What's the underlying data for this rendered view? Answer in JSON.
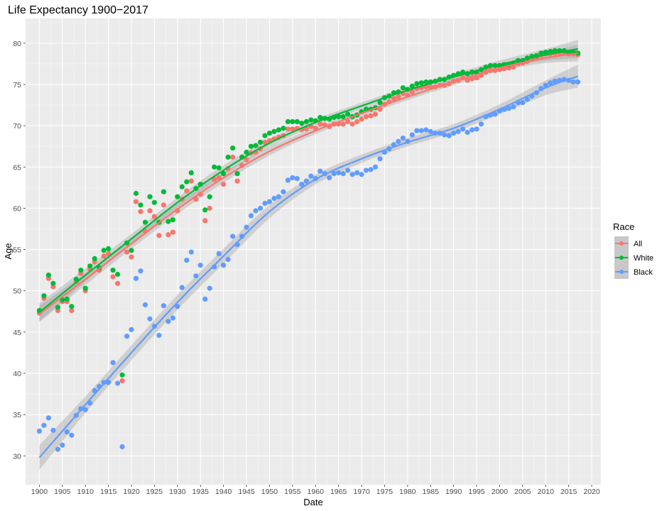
{
  "chart_data": {
    "type": "scatter",
    "title": "Life Expectancy 1900−2017",
    "xlabel": "Date",
    "ylabel": "Age",
    "xlim": [
      1897,
      2022
    ],
    "ylim": [
      26.5,
      83
    ],
    "x_ticks": [
      1900,
      1905,
      1910,
      1915,
      1920,
      1925,
      1930,
      1935,
      1940,
      1945,
      1950,
      1955,
      1960,
      1965,
      1970,
      1975,
      1980,
      1985,
      1990,
      1995,
      2000,
      2005,
      2010,
      2015,
      2020
    ],
    "y_ticks": [
      30,
      35,
      40,
      45,
      50,
      55,
      60,
      65,
      70,
      75,
      80
    ],
    "grid": true,
    "legend": {
      "title": "Race",
      "position": "right"
    },
    "smooth": "loess with confidence band",
    "series": [
      {
        "name": "All",
        "color": "#F8766D",
        "x": [
          1900,
          1901,
          1902,
          1903,
          1904,
          1905,
          1906,
          1907,
          1908,
          1909,
          1910,
          1911,
          1912,
          1913,
          1914,
          1915,
          1916,
          1917,
          1918,
          1919,
          1920,
          1921,
          1922,
          1923,
          1924,
          1925,
          1926,
          1927,
          1928,
          1929,
          1930,
          1931,
          1932,
          1933,
          1934,
          1935,
          1936,
          1937,
          1938,
          1939,
          1940,
          1941,
          1942,
          1943,
          1944,
          1945,
          1946,
          1947,
          1948,
          1949,
          1950,
          1951,
          1952,
          1953,
          1954,
          1955,
          1956,
          1957,
          1958,
          1959,
          1960,
          1961,
          1962,
          1963,
          1964,
          1965,
          1966,
          1967,
          1968,
          1969,
          1970,
          1971,
          1972,
          1973,
          1974,
          1975,
          1976,
          1977,
          1978,
          1979,
          1980,
          1981,
          1982,
          1983,
          1984,
          1985,
          1986,
          1987,
          1988,
          1989,
          1990,
          1991,
          1992,
          1993,
          1994,
          1995,
          1996,
          1997,
          1998,
          1999,
          2000,
          2001,
          2002,
          2003,
          2004,
          2005,
          2006,
          2007,
          2008,
          2009,
          2010,
          2011,
          2012,
          2013,
          2014,
          2015,
          2016,
          2017
        ],
        "y": [
          47.3,
          49.1,
          51.5,
          50.5,
          47.6,
          48.7,
          48.7,
          47.6,
          51.1,
          52.1,
          50.0,
          52.6,
          53.5,
          52.5,
          54.2,
          54.5,
          51.7,
          50.9,
          39.1,
          54.7,
          54.1,
          60.8,
          59.6,
          57.2,
          59.7,
          59.0,
          56.7,
          60.4,
          56.8,
          57.1,
          59.7,
          61.1,
          62.1,
          63.3,
          61.1,
          61.7,
          58.5,
          60.0,
          63.5,
          63.7,
          62.9,
          64.8,
          66.2,
          63.3,
          65.2,
          65.9,
          66.7,
          66.8,
          67.2,
          68.0,
          68.2,
          68.4,
          68.6,
          68.8,
          69.6,
          69.6,
          69.7,
          69.5,
          69.6,
          69.9,
          69.7,
          70.2,
          70.1,
          69.9,
          70.2,
          70.2,
          70.2,
          70.5,
          70.2,
          70.5,
          70.8,
          71.1,
          71.2,
          71.4,
          72.0,
          72.6,
          72.9,
          73.3,
          73.5,
          73.9,
          73.7,
          74.1,
          74.5,
          74.6,
          74.7,
          74.7,
          74.7,
          74.9,
          74.9,
          75.1,
          75.4,
          75.5,
          75.8,
          75.5,
          75.7,
          75.8,
          76.1,
          76.5,
          76.7,
          76.7,
          76.8,
          76.9,
          77.0,
          77.1,
          77.5,
          77.6,
          77.8,
          78.1,
          78.2,
          78.5,
          78.7,
          78.7,
          78.8,
          78.8,
          78.9,
          78.7,
          78.7,
          78.6
        ],
        "fit_x": [
          1900,
          1910,
          1920,
          1930,
          1940,
          1950,
          1960,
          1970,
          1980,
          1990,
          2000,
          2010,
          2017
        ],
        "fit_y": [
          47.2,
          51.4,
          55.7,
          59.9,
          63.7,
          66.9,
          69.4,
          71.5,
          73.5,
          75.3,
          77.0,
          78.2,
          78.8
        ],
        "fit_band": [
          1.0,
          0.7,
          0.6,
          0.6,
          0.6,
          0.5,
          0.4,
          0.4,
          0.4,
          0.4,
          0.4,
          0.6,
          1.0
        ]
      },
      {
        "name": "White",
        "color": "#00BA38",
        "x": [
          1900,
          1901,
          1902,
          1903,
          1904,
          1905,
          1906,
          1907,
          1908,
          1909,
          1910,
          1911,
          1912,
          1913,
          1914,
          1915,
          1916,
          1917,
          1918,
          1919,
          1920,
          1921,
          1922,
          1923,
          1924,
          1925,
          1926,
          1927,
          1928,
          1929,
          1930,
          1931,
          1932,
          1933,
          1934,
          1935,
          1936,
          1937,
          1938,
          1939,
          1940,
          1941,
          1942,
          1943,
          1944,
          1945,
          1946,
          1947,
          1948,
          1949,
          1950,
          1951,
          1952,
          1953,
          1954,
          1955,
          1956,
          1957,
          1958,
          1959,
          1960,
          1961,
          1962,
          1963,
          1964,
          1965,
          1966,
          1967,
          1968,
          1969,
          1970,
          1971,
          1972,
          1973,
          1974,
          1975,
          1976,
          1977,
          1978,
          1979,
          1980,
          1981,
          1982,
          1983,
          1984,
          1985,
          1986,
          1987,
          1988,
          1989,
          1990,
          1991,
          1992,
          1993,
          1994,
          1995,
          1996,
          1997,
          1998,
          1999,
          2000,
          2001,
          2002,
          2003,
          2004,
          2005,
          2006,
          2007,
          2008,
          2009,
          2010,
          2011,
          2012,
          2013,
          2014,
          2015,
          2016,
          2017
        ],
        "y": [
          47.6,
          49.4,
          51.9,
          50.9,
          48.0,
          48.9,
          49.0,
          48.1,
          51.4,
          52.5,
          50.3,
          53.0,
          53.9,
          52.8,
          54.9,
          55.1,
          52.5,
          52.0,
          39.8,
          55.8,
          54.9,
          61.8,
          60.4,
          58.3,
          61.4,
          60.7,
          58.3,
          62.0,
          58.4,
          58.6,
          61.4,
          62.6,
          63.2,
          64.3,
          62.4,
          62.9,
          59.8,
          61.4,
          65.0,
          64.9,
          64.2,
          66.2,
          67.3,
          64.2,
          66.2,
          66.8,
          67.5,
          67.6,
          68.0,
          68.8,
          69.1,
          69.3,
          69.5,
          69.7,
          70.5,
          70.5,
          70.5,
          70.3,
          70.5,
          70.7,
          70.6,
          71.0,
          70.9,
          70.8,
          71.0,
          71.1,
          71.1,
          71.4,
          71.1,
          71.3,
          71.7,
          72.0,
          72.0,
          72.2,
          72.8,
          73.4,
          73.6,
          74.0,
          74.1,
          74.6,
          74.4,
          74.8,
          75.1,
          75.2,
          75.3,
          75.3,
          75.4,
          75.6,
          75.6,
          75.9,
          76.1,
          76.3,
          76.5,
          76.3,
          76.5,
          76.5,
          76.8,
          77.1,
          77.3,
          77.3,
          77.3,
          77.4,
          77.4,
          77.6,
          77.9,
          77.9,
          78.2,
          78.4,
          78.5,
          78.8,
          78.9,
          79.0,
          79.1,
          79.1,
          79.1,
          78.9,
          78.9,
          78.8
        ],
        "fit_x": [
          1900,
          1910,
          1920,
          1930,
          1940,
          1950,
          1960,
          1970,
          1980,
          1990,
          2000,
          2010,
          2017
        ],
        "fit_y": [
          47.4,
          51.9,
          56.3,
          60.7,
          64.6,
          67.9,
          70.4,
          72.4,
          74.3,
          75.9,
          77.4,
          78.6,
          79.3
        ],
        "fit_band": [
          1.1,
          0.8,
          0.6,
          0.6,
          0.6,
          0.5,
          0.4,
          0.4,
          0.4,
          0.4,
          0.5,
          0.7,
          1.1
        ]
      },
      {
        "name": "Black",
        "color": "#619CFF",
        "x": [
          1900,
          1901,
          1902,
          1903,
          1904,
          1905,
          1906,
          1907,
          1908,
          1909,
          1910,
          1911,
          1912,
          1913,
          1914,
          1915,
          1916,
          1917,
          1918,
          1919,
          1920,
          1921,
          1922,
          1923,
          1924,
          1925,
          1926,
          1927,
          1928,
          1929,
          1930,
          1931,
          1932,
          1933,
          1934,
          1935,
          1936,
          1937,
          1938,
          1939,
          1940,
          1941,
          1942,
          1943,
          1944,
          1945,
          1946,
          1947,
          1948,
          1949,
          1950,
          1951,
          1952,
          1953,
          1954,
          1955,
          1956,
          1957,
          1958,
          1959,
          1960,
          1961,
          1962,
          1963,
          1964,
          1965,
          1966,
          1967,
          1968,
          1969,
          1970,
          1971,
          1972,
          1973,
          1974,
          1975,
          1976,
          1977,
          1978,
          1979,
          1980,
          1981,
          1982,
          1983,
          1984,
          1985,
          1986,
          1987,
          1988,
          1989,
          1990,
          1991,
          1992,
          1993,
          1994,
          1995,
          1996,
          1997,
          1998,
          1999,
          2000,
          2001,
          2002,
          2003,
          2004,
          2005,
          2006,
          2007,
          2008,
          2009,
          2010,
          2011,
          2012,
          2013,
          2014,
          2015,
          2016,
          2017
        ],
        "y": [
          33.0,
          33.7,
          34.6,
          33.1,
          30.8,
          31.3,
          32.9,
          32.5,
          34.9,
          35.7,
          35.6,
          36.4,
          37.9,
          38.4,
          38.9,
          38.9,
          41.3,
          38.8,
          31.1,
          44.5,
          45.3,
          51.5,
          52.4,
          48.3,
          46.6,
          45.7,
          44.6,
          48.2,
          46.3,
          46.7,
          48.1,
          50.4,
          53.7,
          54.7,
          51.8,
          53.1,
          49.0,
          50.3,
          52.9,
          54.5,
          53.1,
          53.8,
          56.6,
          55.6,
          56.6,
          57.7,
          59.1,
          59.7,
          60.0,
          60.6,
          60.8,
          61.2,
          61.4,
          62.0,
          63.4,
          63.7,
          63.6,
          62.9,
          63.3,
          63.9,
          63.6,
          64.5,
          64.2,
          63.7,
          64.2,
          64.3,
          64.2,
          64.6,
          64.1,
          64.3,
          64.1,
          64.6,
          64.7,
          65.0,
          66.0,
          66.8,
          67.2,
          67.7,
          68.1,
          68.5,
          68.1,
          68.9,
          69.4,
          69.4,
          69.5,
          69.3,
          69.1,
          69.1,
          68.9,
          68.8,
          69.1,
          69.3,
          69.6,
          69.2,
          69.5,
          69.6,
          70.2,
          71.1,
          71.3,
          71.4,
          71.8,
          72.0,
          72.1,
          72.3,
          72.8,
          72.8,
          73.2,
          73.6,
          74.0,
          74.5,
          74.9,
          75.2,
          75.4,
          75.5,
          75.6,
          75.5,
          75.3,
          75.3
        ],
        "fit_x": [
          1900,
          1910,
          1920,
          1930,
          1940,
          1950,
          1960,
          1970,
          1980,
          1990,
          2000,
          2010,
          2017
        ],
        "fit_y": [
          29.8,
          36.2,
          42.5,
          48.6,
          54.2,
          59.6,
          63.5,
          66.0,
          68.0,
          69.7,
          72.0,
          74.6,
          76.0
        ],
        "fit_band": [
          1.5,
          1.0,
          0.9,
          0.9,
          0.9,
          0.8,
          0.6,
          0.5,
          0.5,
          0.5,
          0.6,
          0.9,
          1.4
        ]
      }
    ]
  }
}
